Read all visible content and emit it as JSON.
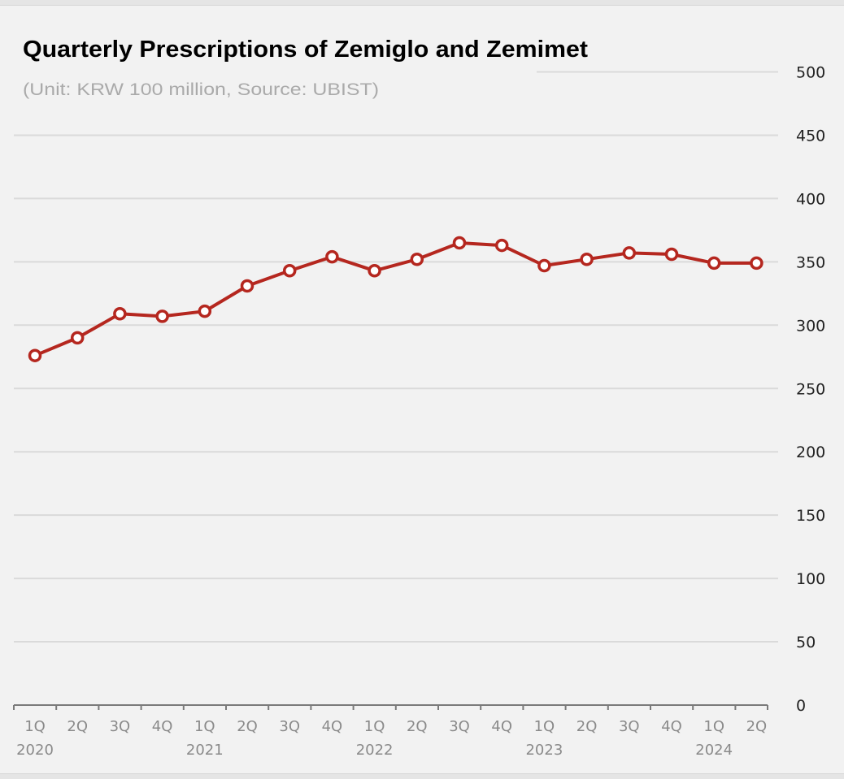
{
  "chart_data": {
    "type": "line",
    "title": "Quarterly Prescriptions of Zemiglo and Zemimet",
    "subtitle": "(Unit: KRW 100 million, Source: UBIST)",
    "xlabel": "",
    "ylabel": "",
    "ylim": [
      0,
      500
    ],
    "yticks": [
      0,
      50,
      100,
      150,
      200,
      250,
      300,
      350,
      400,
      450,
      500
    ],
    "ytick_labels": [
      "0",
      "50",
      "100",
      "150",
      "200",
      "250",
      "300",
      "350",
      "400",
      "450",
      "500"
    ],
    "y_axis_position": "right",
    "grid": true,
    "categories": [
      "1Q",
      "2Q",
      "3Q",
      "4Q",
      "1Q",
      "2Q",
      "3Q",
      "4Q",
      "1Q",
      "2Q",
      "3Q",
      "4Q",
      "1Q",
      "2Q",
      "3Q",
      "4Q",
      "1Q",
      "2Q"
    ],
    "year_labels": [
      {
        "index": 0,
        "label": "2020"
      },
      {
        "index": 4,
        "label": "2021"
      },
      {
        "index": 8,
        "label": "2022"
      },
      {
        "index": 12,
        "label": "2023"
      },
      {
        "index": 16,
        "label": "2024"
      }
    ],
    "series": [
      {
        "name": "Zemiglo and Zemimet",
        "color": "#b5271f",
        "marker": "hollow-circle",
        "values": [
          276,
          290,
          309,
          307,
          311,
          331,
          343,
          354,
          343,
          352,
          365,
          363,
          347,
          352,
          357,
          356,
          349,
          349
        ]
      }
    ],
    "legend": "none"
  }
}
